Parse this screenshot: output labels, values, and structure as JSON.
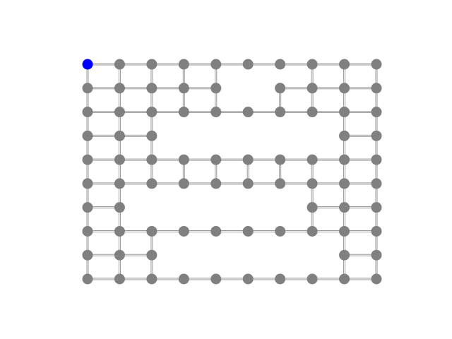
{
  "colors": {
    "background": "#ffffff",
    "node": "#808080",
    "current_node": "#0000ff",
    "edge_outline": "#9a9a9a",
    "edge_fill": "#ffffff"
  },
  "grid": {
    "rows": 10,
    "cols": 10,
    "current": [
      0,
      0
    ],
    "nodes": [
      [
        0,
        0
      ],
      [
        0,
        1
      ],
      [
        0,
        2
      ],
      [
        0,
        3
      ],
      [
        0,
        4
      ],
      [
        0,
        5
      ],
      [
        0,
        6
      ],
      [
        0,
        7
      ],
      [
        0,
        8
      ],
      [
        0,
        9
      ],
      [
        1,
        0
      ],
      [
        1,
        1
      ],
      [
        1,
        2
      ],
      [
        1,
        3
      ],
      [
        1,
        4
      ],
      [
        1,
        6
      ],
      [
        1,
        7
      ],
      [
        1,
        8
      ],
      [
        1,
        9
      ],
      [
        2,
        0
      ],
      [
        2,
        1
      ],
      [
        2,
        2
      ],
      [
        2,
        3
      ],
      [
        2,
        4
      ],
      [
        2,
        5
      ],
      [
        2,
        6
      ],
      [
        2,
        7
      ],
      [
        2,
        8
      ],
      [
        2,
        9
      ],
      [
        3,
        0
      ],
      [
        3,
        1
      ],
      [
        3,
        2
      ],
      [
        3,
        8
      ],
      [
        3,
        9
      ],
      [
        4,
        0
      ],
      [
        4,
        1
      ],
      [
        4,
        2
      ],
      [
        4,
        3
      ],
      [
        4,
        4
      ],
      [
        4,
        5
      ],
      [
        4,
        6
      ],
      [
        4,
        7
      ],
      [
        4,
        8
      ],
      [
        4,
        9
      ],
      [
        5,
        0
      ],
      [
        5,
        1
      ],
      [
        5,
        2
      ],
      [
        5,
        3
      ],
      [
        5,
        4
      ],
      [
        5,
        5
      ],
      [
        5,
        6
      ],
      [
        5,
        7
      ],
      [
        5,
        8
      ],
      [
        5,
        9
      ],
      [
        6,
        0
      ],
      [
        6,
        1
      ],
      [
        6,
        7
      ],
      [
        6,
        8
      ],
      [
        6,
        9
      ],
      [
        7,
        0
      ],
      [
        7,
        1
      ],
      [
        7,
        2
      ],
      [
        7,
        3
      ],
      [
        7,
        4
      ],
      [
        7,
        5
      ],
      [
        7,
        6
      ],
      [
        7,
        7
      ],
      [
        7,
        8
      ],
      [
        7,
        9
      ],
      [
        8,
        0
      ],
      [
        8,
        1
      ],
      [
        8,
        2
      ],
      [
        8,
        8
      ],
      [
        8,
        9
      ],
      [
        9,
        0
      ],
      [
        9,
        1
      ],
      [
        9,
        2
      ],
      [
        9,
        3
      ],
      [
        9,
        4
      ],
      [
        9,
        5
      ],
      [
        9,
        6
      ],
      [
        9,
        7
      ],
      [
        9,
        8
      ],
      [
        9,
        9
      ]
    ],
    "edges": [
      [
        [
          0,
          0
        ],
        [
          0,
          1
        ]
      ],
      [
        [
          0,
          1
        ],
        [
          0,
          2
        ]
      ],
      [
        [
          0,
          2
        ],
        [
          0,
          3
        ]
      ],
      [
        [
          0,
          3
        ],
        [
          0,
          4
        ]
      ],
      [
        [
          0,
          4
        ],
        [
          0,
          5
        ]
      ],
      [
        [
          0,
          5
        ],
        [
          0,
          6
        ]
      ],
      [
        [
          0,
          6
        ],
        [
          0,
          7
        ]
      ],
      [
        [
          0,
          7
        ],
        [
          0,
          8
        ]
      ],
      [
        [
          0,
          8
        ],
        [
          0,
          9
        ]
      ],
      [
        [
          1,
          0
        ],
        [
          1,
          1
        ]
      ],
      [
        [
          1,
          1
        ],
        [
          1,
          2
        ]
      ],
      [
        [
          1,
          2
        ],
        [
          1,
          3
        ]
      ],
      [
        [
          1,
          3
        ],
        [
          1,
          4
        ]
      ],
      [
        [
          1,
          6
        ],
        [
          1,
          7
        ]
      ],
      [
        [
          1,
          7
        ],
        [
          1,
          8
        ]
      ],
      [
        [
          1,
          8
        ],
        [
          1,
          9
        ]
      ],
      [
        [
          2,
          0
        ],
        [
          2,
          1
        ]
      ],
      [
        [
          2,
          1
        ],
        [
          2,
          2
        ]
      ],
      [
        [
          2,
          2
        ],
        [
          2,
          3
        ]
      ],
      [
        [
          2,
          3
        ],
        [
          2,
          4
        ]
      ],
      [
        [
          2,
          4
        ],
        [
          2,
          5
        ]
      ],
      [
        [
          2,
          5
        ],
        [
          2,
          6
        ]
      ],
      [
        [
          2,
          6
        ],
        [
          2,
          7
        ]
      ],
      [
        [
          2,
          7
        ],
        [
          2,
          8
        ]
      ],
      [
        [
          2,
          8
        ],
        [
          2,
          9
        ]
      ],
      [
        [
          3,
          0
        ],
        [
          3,
          1
        ]
      ],
      [
        [
          3,
          1
        ],
        [
          3,
          2
        ]
      ],
      [
        [
          3,
          8
        ],
        [
          3,
          9
        ]
      ],
      [
        [
          4,
          0
        ],
        [
          4,
          1
        ]
      ],
      [
        [
          4,
          1
        ],
        [
          4,
          2
        ]
      ],
      [
        [
          4,
          2
        ],
        [
          4,
          3
        ]
      ],
      [
        [
          4,
          3
        ],
        [
          4,
          4
        ]
      ],
      [
        [
          4,
          4
        ],
        [
          4,
          5
        ]
      ],
      [
        [
          4,
          5
        ],
        [
          4,
          6
        ]
      ],
      [
        [
          4,
          6
        ],
        [
          4,
          7
        ]
      ],
      [
        [
          4,
          7
        ],
        [
          4,
          8
        ]
      ],
      [
        [
          4,
          8
        ],
        [
          4,
          9
        ]
      ],
      [
        [
          5,
          0
        ],
        [
          5,
          1
        ]
      ],
      [
        [
          5,
          1
        ],
        [
          5,
          2
        ]
      ],
      [
        [
          5,
          2
        ],
        [
          5,
          3
        ]
      ],
      [
        [
          5,
          3
        ],
        [
          5,
          4
        ]
      ],
      [
        [
          5,
          4
        ],
        [
          5,
          5
        ]
      ],
      [
        [
          5,
          5
        ],
        [
          5,
          6
        ]
      ],
      [
        [
          5,
          6
        ],
        [
          5,
          7
        ]
      ],
      [
        [
          5,
          7
        ],
        [
          5,
          8
        ]
      ],
      [
        [
          5,
          8
        ],
        [
          5,
          9
        ]
      ],
      [
        [
          6,
          0
        ],
        [
          6,
          1
        ]
      ],
      [
        [
          6,
          7
        ],
        [
          6,
          8
        ]
      ],
      [
        [
          6,
          8
        ],
        [
          6,
          9
        ]
      ],
      [
        [
          7,
          0
        ],
        [
          7,
          1
        ]
      ],
      [
        [
          7,
          1
        ],
        [
          7,
          2
        ]
      ],
      [
        [
          7,
          2
        ],
        [
          7,
          3
        ]
      ],
      [
        [
          7,
          3
        ],
        [
          7,
          4
        ]
      ],
      [
        [
          7,
          4
        ],
        [
          7,
          5
        ]
      ],
      [
        [
          7,
          5
        ],
        [
          7,
          6
        ]
      ],
      [
        [
          7,
          6
        ],
        [
          7,
          7
        ]
      ],
      [
        [
          7,
          7
        ],
        [
          7,
          8
        ]
      ],
      [
        [
          7,
          8
        ],
        [
          7,
          9
        ]
      ],
      [
        [
          8,
          0
        ],
        [
          8,
          1
        ]
      ],
      [
        [
          8,
          1
        ],
        [
          8,
          2
        ]
      ],
      [
        [
          8,
          8
        ],
        [
          8,
          9
        ]
      ],
      [
        [
          9,
          0
        ],
        [
          9,
          1
        ]
      ],
      [
        [
          9,
          1
        ],
        [
          9,
          2
        ]
      ],
      [
        [
          9,
          2
        ],
        [
          9,
          3
        ]
      ],
      [
        [
          9,
          3
        ],
        [
          9,
          4
        ]
      ],
      [
        [
          9,
          4
        ],
        [
          9,
          5
        ]
      ],
      [
        [
          9,
          5
        ],
        [
          9,
          6
        ]
      ],
      [
        [
          9,
          6
        ],
        [
          9,
          7
        ]
      ],
      [
        [
          9,
          7
        ],
        [
          9,
          8
        ]
      ],
      [
        [
          9,
          8
        ],
        [
          9,
          9
        ]
      ],
      [
        [
          0,
          0
        ],
        [
          1,
          0
        ]
      ],
      [
        [
          1,
          0
        ],
        [
          2,
          0
        ]
      ],
      [
        [
          2,
          0
        ],
        [
          3,
          0
        ]
      ],
      [
        [
          3,
          0
        ],
        [
          4,
          0
        ]
      ],
      [
        [
          4,
          0
        ],
        [
          5,
          0
        ]
      ],
      [
        [
          5,
          0
        ],
        [
          6,
          0
        ]
      ],
      [
        [
          6,
          0
        ],
        [
          7,
          0
        ]
      ],
      [
        [
          7,
          0
        ],
        [
          8,
          0
        ]
      ],
      [
        [
          8,
          0
        ],
        [
          9,
          0
        ]
      ],
      [
        [
          0,
          1
        ],
        [
          1,
          1
        ]
      ],
      [
        [
          1,
          1
        ],
        [
          2,
          1
        ]
      ],
      [
        [
          2,
          1
        ],
        [
          3,
          1
        ]
      ],
      [
        [
          3,
          1
        ],
        [
          4,
          1
        ]
      ],
      [
        [
          4,
          1
        ],
        [
          5,
          1
        ]
      ],
      [
        [
          5,
          1
        ],
        [
          6,
          1
        ]
      ],
      [
        [
          6,
          1
        ],
        [
          7,
          1
        ]
      ],
      [
        [
          7,
          1
        ],
        [
          8,
          1
        ]
      ],
      [
        [
          8,
          1
        ],
        [
          9,
          1
        ]
      ],
      [
        [
          0,
          2
        ],
        [
          1,
          2
        ]
      ],
      [
        [
          1,
          2
        ],
        [
          2,
          2
        ]
      ],
      [
        [
          2,
          2
        ],
        [
          3,
          2
        ]
      ],
      [
        [
          3,
          2
        ],
        [
          4,
          2
        ]
      ],
      [
        [
          4,
          2
        ],
        [
          5,
          2
        ]
      ],
      [
        [
          7,
          2
        ],
        [
          8,
          2
        ]
      ],
      [
        [
          8,
          2
        ],
        [
          9,
          2
        ]
      ],
      [
        [
          0,
          3
        ],
        [
          1,
          3
        ]
      ],
      [
        [
          1,
          3
        ],
        [
          2,
          3
        ]
      ],
      [
        [
          4,
          3
        ],
        [
          5,
          3
        ]
      ],
      [
        [
          0,
          4
        ],
        [
          1,
          4
        ]
      ],
      [
        [
          1,
          4
        ],
        [
          2,
          4
        ]
      ],
      [
        [
          4,
          4
        ],
        [
          5,
          4
        ]
      ],
      [
        [
          4,
          5
        ],
        [
          5,
          5
        ]
      ],
      [
        [
          1,
          6
        ],
        [
          2,
          6
        ]
      ],
      [
        [
          4,
          6
        ],
        [
          5,
          6
        ]
      ],
      [
        [
          0,
          7
        ],
        [
          1,
          7
        ]
      ],
      [
        [
          1,
          7
        ],
        [
          2,
          7
        ]
      ],
      [
        [
          4,
          7
        ],
        [
          5,
          7
        ]
      ],
      [
        [
          5,
          7
        ],
        [
          6,
          7
        ]
      ],
      [
        [
          6,
          7
        ],
        [
          7,
          7
        ]
      ],
      [
        [
          0,
          8
        ],
        [
          1,
          8
        ]
      ],
      [
        [
          1,
          8
        ],
        [
          2,
          8
        ]
      ],
      [
        [
          2,
          8
        ],
        [
          3,
          8
        ]
      ],
      [
        [
          3,
          8
        ],
        [
          4,
          8
        ]
      ],
      [
        [
          4,
          8
        ],
        [
          5,
          8
        ]
      ],
      [
        [
          5,
          8
        ],
        [
          6,
          8
        ]
      ],
      [
        [
          6,
          8
        ],
        [
          7,
          8
        ]
      ],
      [
        [
          7,
          8
        ],
        [
          8,
          8
        ]
      ],
      [
        [
          8,
          8
        ],
        [
          9,
          8
        ]
      ],
      [
        [
          0,
          9
        ],
        [
          1,
          9
        ]
      ],
      [
        [
          1,
          9
        ],
        [
          2,
          9
        ]
      ],
      [
        [
          2,
          9
        ],
        [
          3,
          9
        ]
      ],
      [
        [
          3,
          9
        ],
        [
          4,
          9
        ]
      ],
      [
        [
          4,
          9
        ],
        [
          5,
          9
        ]
      ],
      [
        [
          5,
          9
        ],
        [
          6,
          9
        ]
      ],
      [
        [
          6,
          9
        ],
        [
          7,
          9
        ]
      ],
      [
        [
          7,
          9
        ],
        [
          8,
          9
        ]
      ],
      [
        [
          8,
          9
        ],
        [
          9,
          9
        ]
      ]
    ]
  }
}
